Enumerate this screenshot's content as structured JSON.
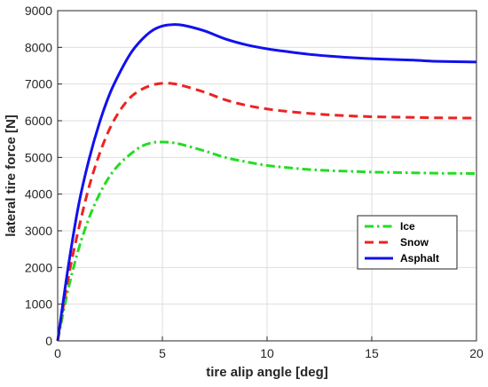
{
  "chart_data": {
    "type": "line",
    "xlabel": "tire alip angle [deg]",
    "ylabel": "lateral tire force [N]",
    "xlim": [
      0,
      20
    ],
    "ylim": [
      0,
      9000
    ],
    "x_ticks": [
      "0",
      "5",
      "10",
      "15",
      "20"
    ],
    "y_ticks": [
      "0",
      "1000",
      "2000",
      "3000",
      "4000",
      "5000",
      "6000",
      "7000",
      "8000",
      "9000"
    ],
    "grid": true,
    "legend_position": "lower-right",
    "series": [
      {
        "name": "Ice",
        "color": "#22dd22",
        "style": "dash-dot",
        "x": [
          0,
          0.5,
          1,
          1.5,
          2,
          2.5,
          3,
          3.5,
          4,
          4.5,
          5,
          5.5,
          6,
          7,
          8,
          9,
          10,
          11,
          12,
          13,
          14,
          15,
          16,
          17,
          18,
          19,
          20
        ],
        "y": [
          0,
          1400,
          2500,
          3350,
          4000,
          4500,
          4850,
          5100,
          5300,
          5400,
          5420,
          5400,
          5340,
          5180,
          5000,
          4880,
          4780,
          4720,
          4670,
          4640,
          4620,
          4600,
          4590,
          4580,
          4570,
          4565,
          4560
        ]
      },
      {
        "name": "Snow",
        "color": "#ee2222",
        "style": "dashed",
        "x": [
          0,
          0.5,
          1,
          1.5,
          2,
          2.5,
          3,
          3.5,
          4,
          4.5,
          5,
          5.5,
          6,
          7,
          8,
          9,
          10,
          11,
          12,
          13,
          14,
          15,
          16,
          17,
          18,
          19,
          20
        ],
        "y": [
          0,
          1700,
          3050,
          4200,
          5100,
          5800,
          6300,
          6650,
          6850,
          6970,
          7020,
          7010,
          6950,
          6780,
          6570,
          6420,
          6320,
          6250,
          6200,
          6160,
          6130,
          6110,
          6100,
          6090,
          6080,
          6075,
          6070
        ]
      },
      {
        "name": "Asphalt",
        "color": "#1111ee",
        "style": "solid",
        "x": [
          0,
          0.5,
          1,
          1.5,
          2,
          2.5,
          3,
          3.5,
          4,
          4.5,
          5,
          5.5,
          6,
          7,
          8,
          9,
          10,
          11,
          12,
          13,
          14,
          15,
          16,
          17,
          18,
          19,
          20
        ],
        "y": [
          0,
          2000,
          3700,
          4950,
          5950,
          6750,
          7350,
          7850,
          8200,
          8450,
          8580,
          8620,
          8600,
          8450,
          8230,
          8070,
          7960,
          7880,
          7810,
          7760,
          7720,
          7690,
          7670,
          7650,
          7620,
          7610,
          7600
        ]
      }
    ]
  }
}
